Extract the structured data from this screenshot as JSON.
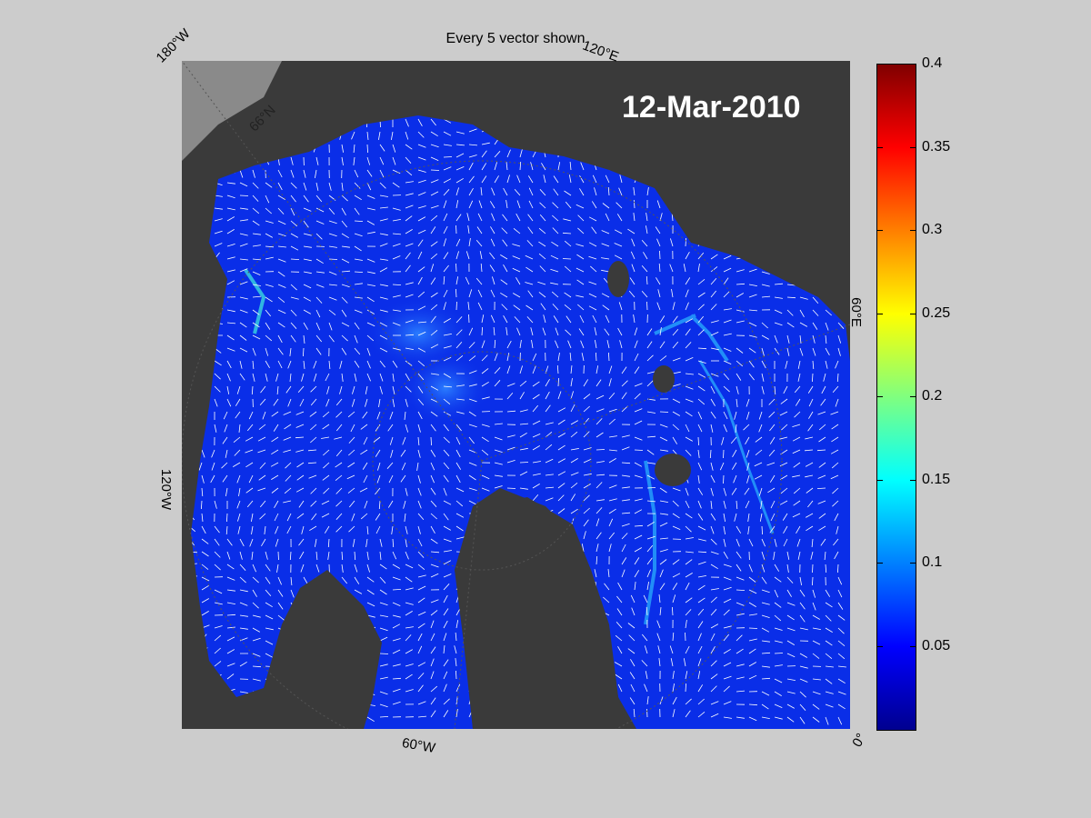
{
  "title": "Every 5 vector shown",
  "date_label": "12-Mar-2010",
  "lon_labels": {
    "lon_180w": "180°W",
    "lon_120e": "120°E",
    "lon_60e": "60°E",
    "lon_120w": "120°W",
    "lon_60w": "60°W",
    "lon_0": "0°",
    "lat_66n": "66°N"
  },
  "colorbar": {
    "colormap": "jet",
    "min": 0,
    "max": 0.4,
    "ticks": [
      "0.05",
      "0.1",
      "0.15",
      "0.2",
      "0.25",
      "0.3",
      "0.35",
      "0.4"
    ],
    "tick_values": [
      0.05,
      0.1,
      0.15,
      0.2,
      0.25,
      0.3,
      0.35,
      0.4
    ]
  },
  "colors": {
    "land": "#3a3a3a",
    "ocean_outside": "#8a8a8a",
    "ice_base": "#0a2ee8",
    "vector": "#ffffff",
    "figure_bg": "#cccccc"
  },
  "icons": [
    "vector-arrow-icon"
  ]
}
